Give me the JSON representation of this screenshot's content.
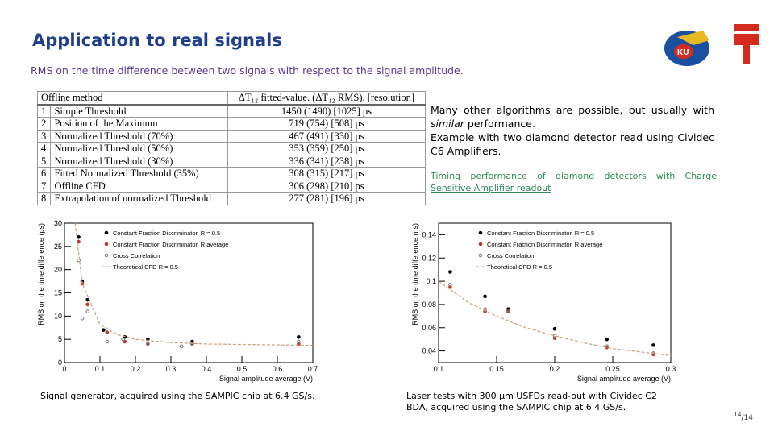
{
  "header": {
    "title": "Application to real signals",
    "subtitle": "RMS on the time difference between two signals with respect to the signal amplitude."
  },
  "table": {
    "columns": [
      "Offline method",
      "ΔT₁₂ fitted-value. (ΔT₁₂ RMS). [resolution]"
    ],
    "rows": [
      [
        "1",
        "Simple Threshold",
        "1450 (1490) [1025] ps"
      ],
      [
        "2",
        "Position of the Maximum",
        "719 (754) [508] ps"
      ],
      [
        "3",
        "Normalized Threshold (70%)",
        "467 (491) [330] ps"
      ],
      [
        "4",
        "Normalized Threshold (50%)",
        "353 (359) [250] ps"
      ],
      [
        "5",
        "Normalized Threshold (30%)",
        "336 (341) [238] ps"
      ],
      [
        "6",
        "Fitted Normalized Threshold (35%)",
        "308 (315) [217] ps"
      ],
      [
        "7",
        "Offline CFD",
        "306 (298) [210] ps"
      ],
      [
        "8",
        "Extrapolation of normalized Threshold",
        "277 (281) [196] ps"
      ]
    ]
  },
  "text": {
    "paragraph1": [
      "Many other algorithms are possible, but usually with ",
      "similar",
      " performance."
    ],
    "paragraph2": "Example with two diamond detector read using Cividec C6 Amplifiers.",
    "link": "Timing performance of diamond detectors with Charge Sensitive Amplifier readout"
  },
  "plots": [
    {
      "type": "scatter",
      "x_label": "Signal amplitude average (V)",
      "y_label": "RMS on the time difference (ps)",
      "xlim": [
        0,
        0.7
      ],
      "xticks": [
        0,
        0.1,
        0.2,
        0.3,
        0.4,
        0.5,
        0.6,
        0.7
      ],
      "ylim": [
        0,
        30
      ],
      "yticks": [
        0,
        5,
        10,
        15,
        20,
        25,
        30
      ],
      "series": [
        {
          "name": "Constant Fraction Discriminator, R = 0.5",
          "color": "#000000",
          "style": "dot",
          "x": [
            0.04,
            0.05,
            0.065,
            0.11,
            0.17,
            0.235,
            0.36,
            0.66
          ],
          "values": [
            27,
            17.5,
            13.5,
            7,
            5.5,
            5,
            4.5,
            5.5
          ]
        },
        {
          "name": "Constant Fraction Discriminator, R average",
          "color": "#c0392b",
          "style": "dot",
          "x": [
            0.04,
            0.05,
            0.065,
            0.12,
            0.17,
            0.235,
            0.36,
            0.66
          ],
          "values": [
            26,
            17,
            12.5,
            6.5,
            4.5,
            4,
            4,
            4
          ]
        },
        {
          "name": "Cross Correlation",
          "color": "#777777",
          "style": "open",
          "x": [
            0.04,
            0.05,
            0.065,
            0.12,
            0.165,
            0.235,
            0.33,
            0.36,
            0.66
          ],
          "values": [
            22,
            9.5,
            11,
            4.5,
            5,
            4,
            3.5,
            4,
            4.5
          ]
        },
        {
          "name": "Theoretical CFD R = 0.5",
          "color": "#c8a27a",
          "style": "dashed",
          "x": [
            0.03,
            0.05,
            0.1,
            0.15,
            0.2,
            0.3,
            0.4,
            0.5,
            0.6,
            0.7
          ],
          "values": [
            30,
            17,
            8.2,
            6,
            5,
            4.3,
            4,
            3.9,
            3.8,
            3.7
          ]
        }
      ]
    },
    {
      "type": "scatter",
      "x_label": "Signal amplitude average (V)",
      "y_label": "RMS on the time difference (ns)",
      "xlim": [
        0.1,
        0.3
      ],
      "xticks": [
        0.1,
        0.15,
        0.2,
        0.25,
        0.3
      ],
      "ylim": [
        0.03,
        0.15
      ],
      "yticks": [
        0.04,
        0.06,
        0.08,
        0.1,
        0.12,
        0.14
      ],
      "series": [
        {
          "name": "Constant Fraction Discriminator, R = 0.5",
          "color": "#000000",
          "style": "dot",
          "x": [
            0.11,
            0.14,
            0.16,
            0.2,
            0.245,
            0.285
          ],
          "values": [
            0.108,
            0.087,
            0.076,
            0.059,
            0.05,
            0.045
          ]
        },
        {
          "name": "Constant Fraction Discriminator, R average",
          "color": "#c0392b",
          "style": "dot",
          "x": [
            0.11,
            0.14,
            0.16,
            0.2,
            0.245,
            0.285
          ],
          "values": [
            0.095,
            0.074,
            0.074,
            0.051,
            0.043,
            0.037
          ]
        },
        {
          "name": "Cross Correlation",
          "color": "#777777",
          "style": "open",
          "x": [
            0.11,
            0.14,
            0.16,
            0.2,
            0.245,
            0.285
          ],
          "values": [
            0.097,
            0.076,
            0.075,
            0.053,
            0.044,
            0.038
          ]
        },
        {
          "name": "Theoretical CFD R = 0.5",
          "color": "#c8a27a",
          "style": "dashed",
          "x": [
            0.1,
            0.125,
            0.15,
            0.175,
            0.2,
            0.225,
            0.25,
            0.275,
            0.3
          ],
          "values": [
            0.1,
            0.082,
            0.07,
            0.06,
            0.053,
            0.047,
            0.042,
            0.039,
            0.036
          ]
        }
      ]
    }
  ],
  "captions": [
    "Signal generator, acquired using the SAMPIC chip at 6.4 GS/s.",
    "Laser tests with 300 µm USFDs read-out with Cividec C2 BDA, acquired using the SAMPIC chip at 6.4 GS/s."
  ],
  "page": {
    "number": "14",
    "total": "/14"
  }
}
